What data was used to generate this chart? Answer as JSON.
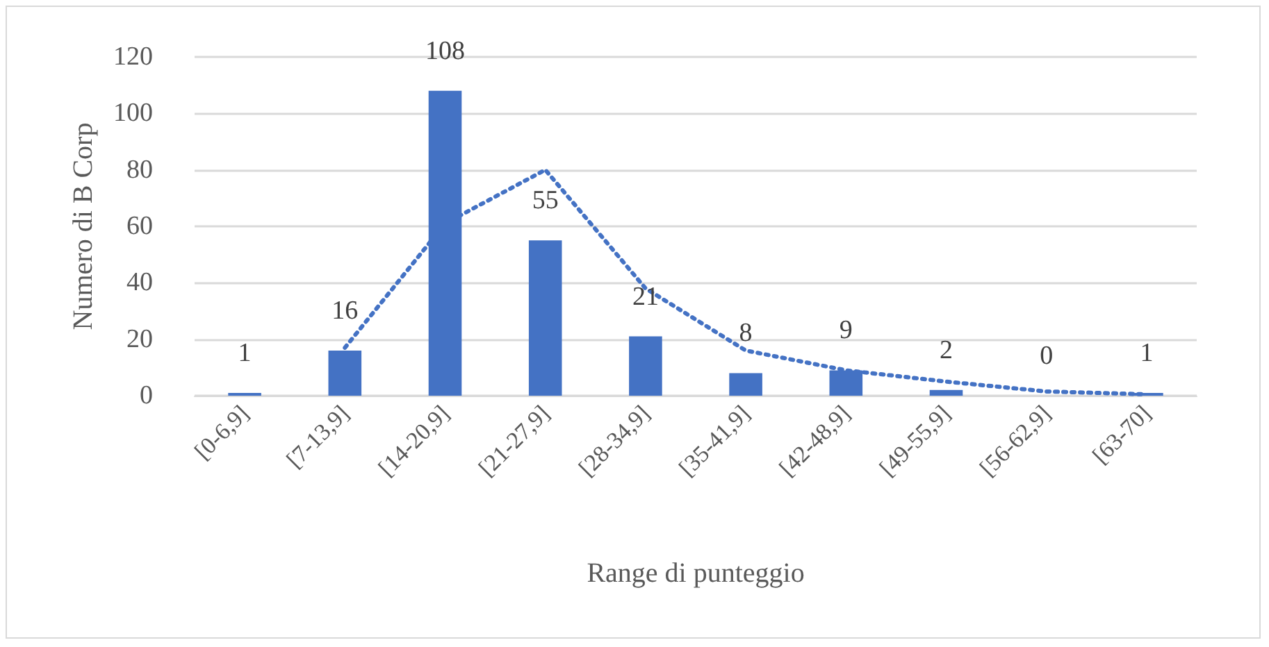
{
  "chart_data": {
    "type": "bar",
    "xlabel": "Range di punteggio",
    "ylabel": "Numero di B Corp",
    "categories": [
      "[0-6,9]",
      "[7-13,9]",
      "[14-20,9]",
      "[21-27,9]",
      "[28-34,9]",
      "[35-41,9]",
      "[42-48,9]",
      "[49-55,9]",
      "[56-62,9]",
      "[63-70]"
    ],
    "series": [
      {
        "color": "#4472c4",
        "values": [
          1,
          16,
          108,
          55,
          21,
          8,
          9,
          2,
          0,
          1
        ],
        "value_labels": [
          "1",
          "16",
          "108",
          "55",
          "21",
          "8",
          "9",
          "2",
          "0",
          "1"
        ]
      },
      {
        "type": "line",
        "color": "#4472c4",
        "line_style": "dotted",
        "marker": "none",
        "values": [
          null,
          17,
          61,
          80,
          38,
          16,
          9,
          5,
          1.5,
          0.5
        ]
      }
    ],
    "ylim": [
      0,
      120
    ],
    "yticks": [
      0,
      20,
      40,
      60,
      80,
      100,
      120
    ],
    "grid": "y"
  }
}
